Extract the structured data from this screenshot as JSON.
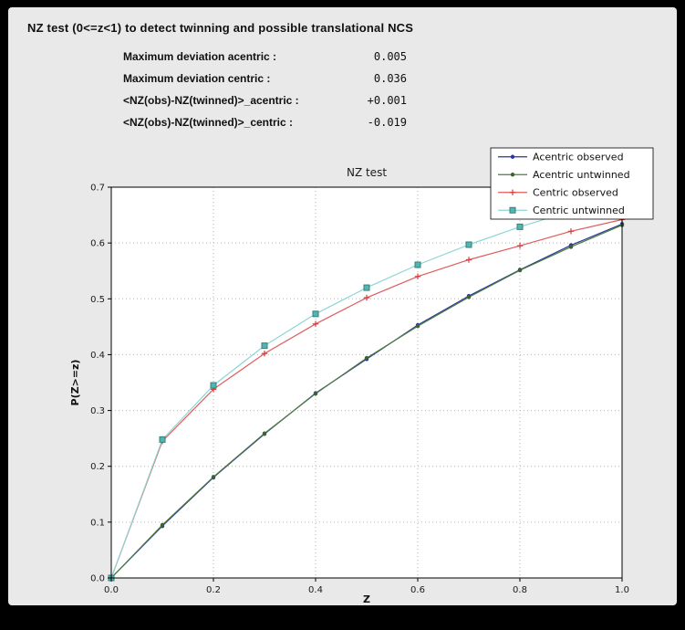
{
  "header": {
    "title": "NZ test (0<=z<1) to detect twinning and possible translational NCS"
  },
  "stats": {
    "rows": [
      {
        "label": "Maximum deviation acentric :",
        "value": "0.005"
      },
      {
        "label": "Maximum deviation centric :",
        "value": "0.036"
      },
      {
        "label": "<NZ(obs)-NZ(twinned)>_acentric :",
        "value": "+0.001"
      },
      {
        "label": "<NZ(obs)-NZ(twinned)>_centric :",
        "value": "-0.019"
      }
    ]
  },
  "chart_data": {
    "type": "line",
    "title": "NZ test",
    "xlabel": "Z",
    "ylabel": "P(Z>=z)",
    "xlim": [
      0.0,
      1.0
    ],
    "ylim": [
      0.0,
      0.7
    ],
    "xticks": [
      0.0,
      0.2,
      0.4,
      0.6,
      0.8,
      1.0
    ],
    "yticks": [
      0.0,
      0.1,
      0.2,
      0.3,
      0.4,
      0.5,
      0.6,
      0.7
    ],
    "grid": true,
    "legend_position": "upper right",
    "x": [
      0.0,
      0.1,
      0.2,
      0.3,
      0.4,
      0.5,
      0.6,
      0.7,
      0.8,
      0.9,
      1.0
    ],
    "series": [
      {
        "name": "Acentric observed",
        "color": "#27379b",
        "marker": "dot",
        "marker_fill": "#27379b",
        "values": [
          0.0,
          0.093,
          0.18,
          0.258,
          0.331,
          0.392,
          0.453,
          0.505,
          0.552,
          0.596,
          0.634
        ]
      },
      {
        "name": "Acentric untwinned",
        "color": "#4e7c3f",
        "marker": "dot",
        "marker_fill": "#3c6330",
        "values": [
          0.0,
          0.095,
          0.181,
          0.259,
          0.33,
          0.394,
          0.451,
          0.503,
          0.551,
          0.593,
          0.632
        ]
      },
      {
        "name": "Centric observed",
        "color": "#e05c5c",
        "marker": "plus",
        "marker_fill": "#d83a3a",
        "values": [
          0.0,
          0.245,
          0.338,
          0.402,
          0.455,
          0.502,
          0.54,
          0.57,
          0.595,
          0.621,
          0.642
        ]
      },
      {
        "name": "Centric untwinned",
        "color": "#8cd6d4",
        "marker": "square",
        "marker_fill": "#56b4b0",
        "marker_edge": "#2f827e",
        "values": [
          0.0,
          0.248,
          0.345,
          0.416,
          0.473,
          0.52,
          0.561,
          0.597,
          0.629,
          0.657,
          0.683
        ]
      }
    ]
  }
}
